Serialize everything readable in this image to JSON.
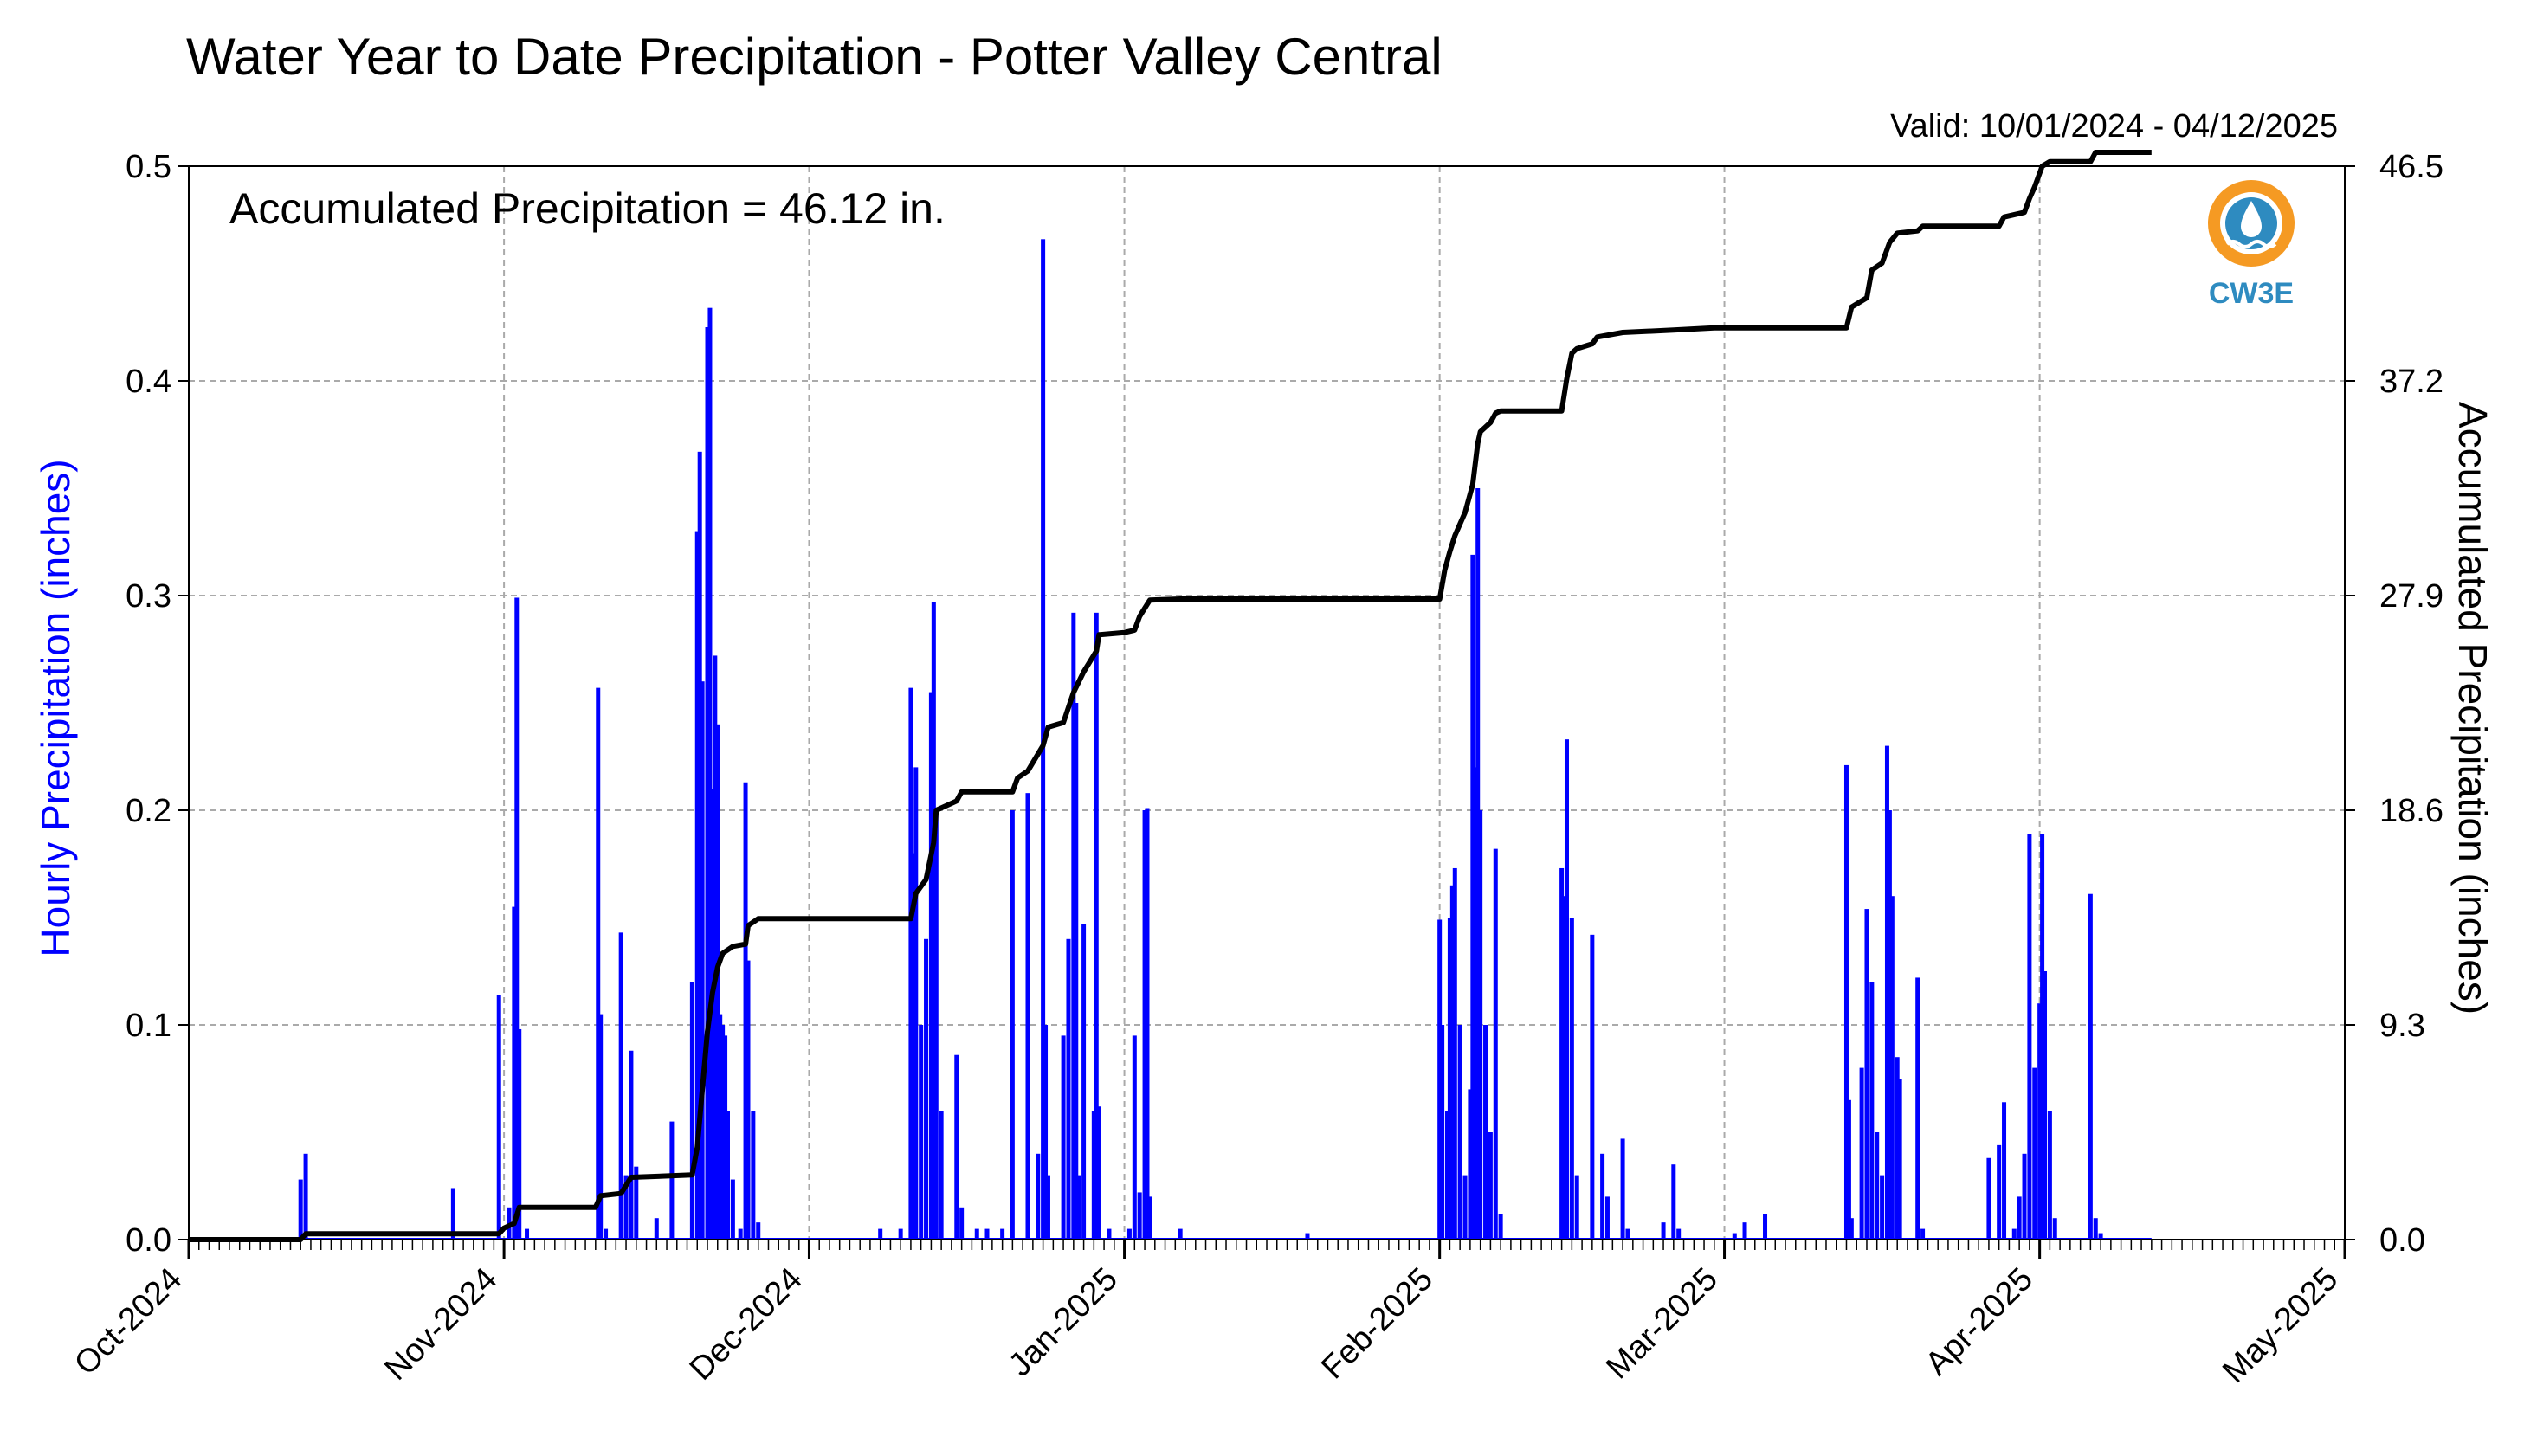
{
  "chart_data": {
    "type": "bar",
    "title": "Water Year to Date Precipitation - Potter Valley Central",
    "valid_text": "Valid: 10/01/2024 - 04/12/2025",
    "annotation": "Accumulated Precipitation = 46.12 in.",
    "ylabel_left": "Hourly Precipitation (inches)",
    "ylabel_right": "Accumulated Precipitation (inches)",
    "xlim": [
      "2024-10-01",
      "2025-05-01"
    ],
    "ylim_left": [
      0,
      0.5
    ],
    "ylim_right": [
      0,
      46.5
    ],
    "yticks_left": [
      "0.0",
      "0.1",
      "0.2",
      "0.3",
      "0.4",
      "0.5"
    ],
    "yticks_right": [
      "0.0",
      "9.3",
      "18.6",
      "27.9",
      "37.2",
      "46.5"
    ],
    "x_tick_labels": [
      {
        "date": "2024-10-01",
        "label": "Oct-2024"
      },
      {
        "date": "2024-11-01",
        "label": "Nov-2024"
      },
      {
        "date": "2024-12-01",
        "label": "Dec-2024"
      },
      {
        "date": "2025-01-01",
        "label": "Jan-2025"
      },
      {
        "date": "2025-02-01",
        "label": "Feb-2025"
      },
      {
        "date": "2025-03-01",
        "label": "Mar-2025"
      },
      {
        "date": "2025-04-01",
        "label": "Apr-2025"
      },
      {
        "date": "2025-05-01",
        "label": "May-2025"
      }
    ],
    "grid": true,
    "series": [
      {
        "name": "Hourly Precipitation",
        "color": "#0000ff",
        "type": "bar",
        "points": [
          [
            "2024-10-12T00",
            0.028
          ],
          [
            "2024-10-12T12",
            0.04
          ],
          [
            "2024-10-27T00",
            0.024
          ],
          [
            "2024-10-31T12",
            0.114
          ],
          [
            "2024-11-01T12",
            0.015
          ],
          [
            "2024-11-02T00",
            0.155
          ],
          [
            "2024-11-02T06",
            0.299
          ],
          [
            "2024-11-02T12",
            0.098
          ],
          [
            "2024-11-03T06",
            0.005
          ],
          [
            "2024-11-10T06",
            0.257
          ],
          [
            "2024-11-10T12",
            0.105
          ],
          [
            "2024-11-11T00",
            0.005
          ],
          [
            "2024-11-12T12",
            0.143
          ],
          [
            "2024-11-13T00",
            0.03
          ],
          [
            "2024-11-13T12",
            0.088
          ],
          [
            "2024-11-14T00",
            0.034
          ],
          [
            "2024-11-16T00",
            0.01
          ],
          [
            "2024-11-17T12",
            0.055
          ],
          [
            "2024-11-19T12",
            0.12
          ],
          [
            "2024-11-20T00",
            0.33
          ],
          [
            "2024-11-20T06",
            0.367
          ],
          [
            "2024-11-20T12",
            0.26
          ],
          [
            "2024-11-21T00",
            0.425
          ],
          [
            "2024-11-21T06",
            0.434
          ],
          [
            "2024-11-21T12",
            0.21
          ],
          [
            "2024-11-21T18",
            0.272
          ],
          [
            "2024-11-22T00",
            0.24
          ],
          [
            "2024-11-22T06",
            0.105
          ],
          [
            "2024-11-22T12",
            0.1
          ],
          [
            "2024-11-22T18",
            0.095
          ],
          [
            "2024-11-23T00",
            0.06
          ],
          [
            "2024-11-23T12",
            0.028
          ],
          [
            "2024-11-24T06",
            0.005
          ],
          [
            "2024-11-24T18",
            0.213
          ],
          [
            "2024-11-25T00",
            0.13
          ],
          [
            "2024-11-25T12",
            0.06
          ],
          [
            "2024-11-26T00",
            0.008
          ],
          [
            "2024-12-08T00",
            0.005
          ],
          [
            "2024-12-10T00",
            0.005
          ],
          [
            "2024-12-11T00",
            0.257
          ],
          [
            "2024-12-11T06",
            0.18
          ],
          [
            "2024-12-11T12",
            0.22
          ],
          [
            "2024-12-12T00",
            0.1
          ],
          [
            "2024-12-12T12",
            0.14
          ],
          [
            "2024-12-13T00",
            0.255
          ],
          [
            "2024-12-13T06",
            0.297
          ],
          [
            "2024-12-13T12",
            0.2
          ],
          [
            "2024-12-14T00",
            0.06
          ],
          [
            "2024-12-15T12",
            0.086
          ],
          [
            "2024-12-16T00",
            0.015
          ],
          [
            "2024-12-17T12",
            0.005
          ],
          [
            "2024-12-18T12",
            0.005
          ],
          [
            "2024-12-20T00",
            0.005
          ],
          [
            "2024-12-21T00",
            0.2
          ],
          [
            "2024-12-22T12",
            0.208
          ],
          [
            "2024-12-23T12",
            0.04
          ],
          [
            "2024-12-24T00",
            0.466
          ],
          [
            "2024-12-24T06",
            0.1
          ],
          [
            "2024-12-24T12",
            0.03
          ],
          [
            "2024-12-26T00",
            0.095
          ],
          [
            "2024-12-26T12",
            0.14
          ],
          [
            "2024-12-27T00",
            0.292
          ],
          [
            "2024-12-27T06",
            0.25
          ],
          [
            "2024-12-27T12",
            0.03
          ],
          [
            "2024-12-28T00",
            0.147
          ],
          [
            "2024-12-29T00",
            0.06
          ],
          [
            "2024-12-29T06",
            0.292
          ],
          [
            "2024-12-29T12",
            0.062
          ],
          [
            "2024-12-30T12",
            0.005
          ],
          [
            "2025-01-01T12",
            0.005
          ],
          [
            "2025-01-02T00",
            0.095
          ],
          [
            "2025-01-02T12",
            0.022
          ],
          [
            "2025-01-03T00",
            0.2
          ],
          [
            "2025-01-03T06",
            0.201
          ],
          [
            "2025-01-03T12",
            0.02
          ],
          [
            "2025-01-06T12",
            0.005
          ],
          [
            "2025-01-19T00",
            0.003
          ],
          [
            "2025-02-01T00",
            0.149
          ],
          [
            "2025-02-01T06",
            0.1
          ],
          [
            "2025-02-01T18",
            0.06
          ],
          [
            "2025-02-02T00",
            0.15
          ],
          [
            "2025-02-02T06",
            0.165
          ],
          [
            "2025-02-02T12",
            0.173
          ],
          [
            "2025-02-03T00",
            0.1
          ],
          [
            "2025-02-03T12",
            0.03
          ],
          [
            "2025-02-04T00",
            0.07
          ],
          [
            "2025-02-04T06",
            0.319
          ],
          [
            "2025-02-04T12",
            0.22
          ],
          [
            "2025-02-04T18",
            0.35
          ],
          [
            "2025-02-05T00",
            0.2
          ],
          [
            "2025-02-05T12",
            0.1
          ],
          [
            "2025-02-06T00",
            0.05
          ],
          [
            "2025-02-06T12",
            0.182
          ],
          [
            "2025-02-07T00",
            0.012
          ],
          [
            "2025-02-13T00",
            0.173
          ],
          [
            "2025-02-13T06",
            0.16
          ],
          [
            "2025-02-13T12",
            0.233
          ],
          [
            "2025-02-14T00",
            0.15
          ],
          [
            "2025-02-14T12",
            0.03
          ],
          [
            "2025-02-16T00",
            0.142
          ],
          [
            "2025-02-17T00",
            0.04
          ],
          [
            "2025-02-17T12",
            0.02
          ],
          [
            "2025-02-19T00",
            0.047
          ],
          [
            "2025-02-19T12",
            0.005
          ],
          [
            "2025-02-23T00",
            0.008
          ],
          [
            "2025-02-24T00",
            0.035
          ],
          [
            "2025-02-24T12",
            0.005
          ],
          [
            "2025-03-02T00",
            0.003
          ],
          [
            "2025-03-03T00",
            0.008
          ],
          [
            "2025-03-05T00",
            0.012
          ],
          [
            "2025-03-13T00",
            0.221
          ],
          [
            "2025-03-13T06",
            0.065
          ],
          [
            "2025-03-13T12",
            0.01
          ],
          [
            "2025-03-14T12",
            0.08
          ],
          [
            "2025-03-15T00",
            0.154
          ],
          [
            "2025-03-15T12",
            0.12
          ],
          [
            "2025-03-16T00",
            0.05
          ],
          [
            "2025-03-16T12",
            0.03
          ],
          [
            "2025-03-17T00",
            0.23
          ],
          [
            "2025-03-17T06",
            0.2
          ],
          [
            "2025-03-17T12",
            0.16
          ],
          [
            "2025-03-18T00",
            0.085
          ],
          [
            "2025-03-18T06",
            0.075
          ],
          [
            "2025-03-20T00",
            0.122
          ],
          [
            "2025-03-20T12",
            0.005
          ],
          [
            "2025-03-27T00",
            0.038
          ],
          [
            "2025-03-28T00",
            0.044
          ],
          [
            "2025-03-28T12",
            0.064
          ],
          [
            "2025-03-29T12",
            0.005
          ],
          [
            "2025-03-30T00",
            0.02
          ],
          [
            "2025-03-30T12",
            0.04
          ],
          [
            "2025-03-31T00",
            0.189
          ],
          [
            "2025-03-31T12",
            0.08
          ],
          [
            "2025-04-01T00",
            0.11
          ],
          [
            "2025-04-01T06",
            0.189
          ],
          [
            "2025-04-01T12",
            0.125
          ],
          [
            "2025-04-02T00",
            0.06
          ],
          [
            "2025-04-02T12",
            0.01
          ],
          [
            "2025-04-06T00",
            0.161
          ],
          [
            "2025-04-06T12",
            0.01
          ],
          [
            "2025-04-07T00",
            0.003
          ]
        ]
      },
      {
        "name": "Accumulated Precipitation",
        "color": "#000000",
        "type": "line",
        "points": [
          [
            "2024-10-01T00",
            0.0
          ],
          [
            "2024-10-12T00",
            0.0
          ],
          [
            "2024-10-12T12",
            0.25
          ],
          [
            "2024-10-31T12",
            0.25
          ],
          [
            "2024-11-01T00",
            0.5
          ],
          [
            "2024-11-02T00",
            0.7
          ],
          [
            "2024-11-02T12",
            1.4
          ],
          [
            "2024-11-10T00",
            1.4
          ],
          [
            "2024-11-10T12",
            1.9
          ],
          [
            "2024-11-12T12",
            2.0
          ],
          [
            "2024-11-13T12",
            2.7
          ],
          [
            "2024-11-19T12",
            2.8
          ],
          [
            "2024-11-20T00",
            4.0
          ],
          [
            "2024-11-20T12",
            6.5
          ],
          [
            "2024-11-21T00",
            9.0
          ],
          [
            "2024-11-21T12",
            10.7
          ],
          [
            "2024-11-22T00",
            11.8
          ],
          [
            "2024-11-22T12",
            12.4
          ],
          [
            "2024-11-23T12",
            12.7
          ],
          [
            "2024-11-24T18",
            12.8
          ],
          [
            "2024-11-25T00",
            13.6
          ],
          [
            "2024-11-26T00",
            13.9
          ],
          [
            "2024-12-11T00",
            13.9
          ],
          [
            "2024-12-11T12",
            15.0
          ],
          [
            "2024-12-12T12",
            15.6
          ],
          [
            "2024-12-13T06",
            17.2
          ],
          [
            "2024-12-13T12",
            18.6
          ],
          [
            "2024-12-15T12",
            19.0
          ],
          [
            "2024-12-16T00",
            19.4
          ],
          [
            "2024-12-21T00",
            19.4
          ],
          [
            "2024-12-21T12",
            20.0
          ],
          [
            "2024-12-22T12",
            20.3
          ],
          [
            "2024-12-24T00",
            21.4
          ],
          [
            "2024-12-24T12",
            22.2
          ],
          [
            "2024-12-26T00",
            22.4
          ],
          [
            "2024-12-27T00",
            23.7
          ],
          [
            "2024-12-28T00",
            24.6
          ],
          [
            "2024-12-29T06",
            25.5
          ],
          [
            "2024-12-29T12",
            26.2
          ],
          [
            "2025-01-01T00",
            26.3
          ],
          [
            "2025-01-02T00",
            26.4
          ],
          [
            "2025-01-02T12",
            27.0
          ],
          [
            "2025-01-03T12",
            27.7
          ],
          [
            "2025-01-06T12",
            27.75
          ],
          [
            "2025-02-01T00",
            27.75
          ],
          [
            "2025-02-01T12",
            29.0
          ],
          [
            "2025-02-02T00",
            29.8
          ],
          [
            "2025-02-02T12",
            30.5
          ],
          [
            "2025-02-03T12",
            31.5
          ],
          [
            "2025-02-04T06",
            32.7
          ],
          [
            "2025-02-04T18",
            34.5
          ],
          [
            "2025-02-05T00",
            35.0
          ],
          [
            "2025-02-06T00",
            35.4
          ],
          [
            "2025-02-06T12",
            35.8
          ],
          [
            "2025-02-07T00",
            35.9
          ],
          [
            "2025-02-13T00",
            35.9
          ],
          [
            "2025-02-13T12",
            37.3
          ],
          [
            "2025-02-14T00",
            38.4
          ],
          [
            "2025-02-14T12",
            38.6
          ],
          [
            "2025-02-16T00",
            38.8
          ],
          [
            "2025-02-16T12",
            39.1
          ],
          [
            "2025-02-19T00",
            39.3
          ],
          [
            "2025-02-24T00",
            39.4
          ],
          [
            "2025-02-28T00",
            39.5
          ],
          [
            "2025-03-13T00",
            39.5
          ],
          [
            "2025-03-13T12",
            40.4
          ],
          [
            "2025-03-15T00",
            40.8
          ],
          [
            "2025-03-15T12",
            42.0
          ],
          [
            "2025-03-16T12",
            42.3
          ],
          [
            "2025-03-17T06",
            43.2
          ],
          [
            "2025-03-18T00",
            43.6
          ],
          [
            "2025-03-20T00",
            43.7
          ],
          [
            "2025-03-20T12",
            43.9
          ],
          [
            "2025-03-28T00",
            43.9
          ],
          [
            "2025-03-28T12",
            44.3
          ],
          [
            "2025-03-30T12",
            44.5
          ],
          [
            "2025-03-31T00",
            45.1
          ],
          [
            "2025-03-31T12",
            45.6
          ],
          [
            "2025-04-01T06",
            46.5
          ],
          [
            "2025-04-02T00",
            46.7
          ],
          [
            "2025-04-06T00",
            46.7
          ],
          [
            "2025-04-06T12",
            47.1
          ],
          [
            "2025-04-12T00",
            47.1
          ]
        ]
      }
    ]
  },
  "logo": {
    "text": "CW3E",
    "outer_color": "#f59a23",
    "inner_color": "#2e8bc0"
  }
}
